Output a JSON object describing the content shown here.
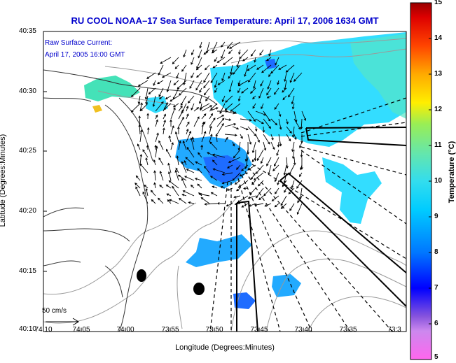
{
  "title": "RU COOL  NOAA–17  Sea Surface Temperature:  April 17, 2006 1634 GMT",
  "legend": {
    "line1": "Raw Surface Current:",
    "line2": "April 17, 2005 16:00 GMT"
  },
  "scale_label": "50 cm/s",
  "axes": {
    "xlabel": "Longitude (Degrees:Minutes)",
    "ylabel": "Latitude (Degrees:Minutes)",
    "xticks": [
      "74:10",
      "74:05",
      "74:00",
      "73:55",
      "73:50",
      "73:45",
      "73:40",
      "73:35",
      "73:3"
    ],
    "yticks": [
      "40:35",
      "40:30",
      "40:25",
      "40:20",
      "40:15",
      "40:10"
    ]
  },
  "colorbar": {
    "title": "Temperature (°C)",
    "ticks": [
      "15",
      "14",
      "13",
      "12",
      "11",
      "10",
      "9",
      "8",
      "7",
      "6",
      "5"
    ],
    "range": [
      5,
      15
    ]
  },
  "colors": {
    "title": "#0000cc",
    "sst_cyan": "#33ddff",
    "sst_blue": "#1e6cff",
    "sst_green": "#66e0a8",
    "sst_yellow": "#f0c020"
  }
}
